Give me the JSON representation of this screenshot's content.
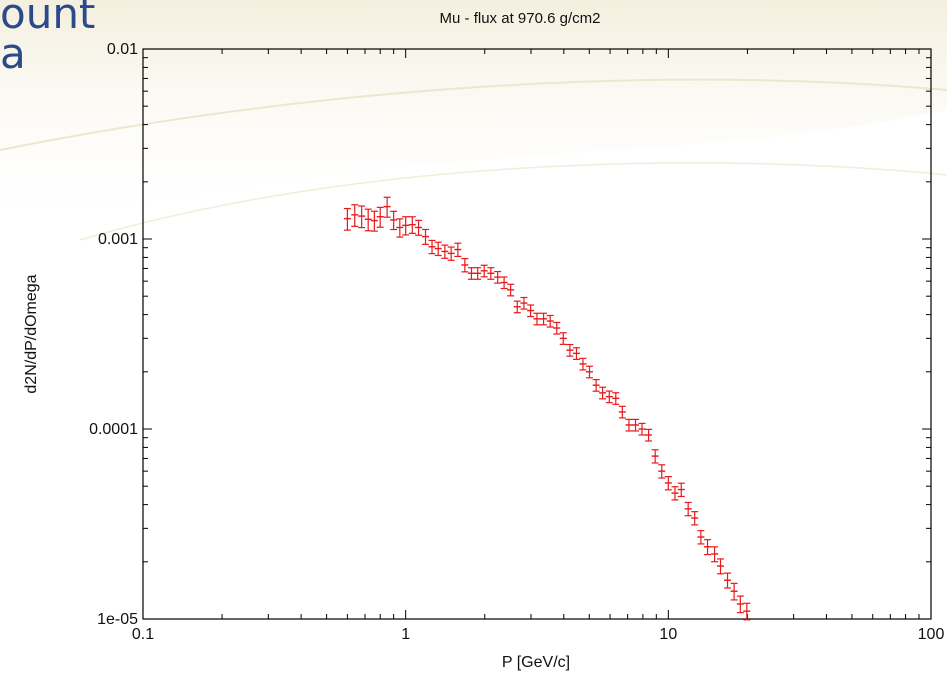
{
  "slide": {
    "text_lines": [
      "ount",
      "a"
    ],
    "text_color": "#2a4a8c"
  },
  "chart_data": {
    "type": "scatter",
    "title": "Mu - flux at 970.6 g/cm2",
    "xlabel": "P [GeV/c]",
    "ylabel": "d2N/dP/dOmega",
    "xscale": "log",
    "yscale": "log",
    "xlim": [
      0.1,
      100
    ],
    "ylim": [
      1e-05,
      0.01
    ],
    "x_ticks": [
      0.1,
      1,
      10,
      100
    ],
    "x_tick_labels": [
      "0.1",
      "1",
      "10",
      "100"
    ],
    "y_ticks": [
      1e-05,
      0.0001,
      0.001,
      0.01
    ],
    "y_tick_labels": [
      "1e-05",
      "0.0001",
      "0.001",
      "0.01"
    ],
    "grid": false,
    "legend": "none",
    "marker": "error-bar-crosses",
    "series_color": "#e8191b",
    "series": [
      {
        "x": [
          0.6,
          0.64,
          0.68,
          0.72,
          0.76,
          0.8,
          0.85,
          0.9,
          0.95,
          1.0,
          1.06,
          1.12,
          1.19,
          1.26,
          1.33,
          1.41,
          1.49,
          1.58,
          1.68,
          1.78,
          1.88,
          1.99,
          2.11,
          2.24,
          2.37,
          2.51,
          2.66,
          2.82,
          2.99,
          3.16,
          3.35,
          3.55,
          3.76,
          3.98,
          4.22,
          4.47,
          4.73,
          5.01,
          5.31,
          5.62,
          5.96,
          6.31,
          6.68,
          7.08,
          7.5,
          7.94,
          8.41,
          8.91,
          9.44,
          10.0,
          10.6,
          11.2,
          11.9,
          12.6,
          13.3,
          14.1,
          15.0,
          15.8,
          16.8,
          17.8,
          18.8,
          19.9
        ],
        "y": [
          0.00128,
          0.00134,
          0.00132,
          0.00127,
          0.00125,
          0.00131,
          0.00148,
          0.00126,
          0.00115,
          0.00118,
          0.00119,
          0.00115,
          0.00103,
          0.00091,
          0.00089,
          0.00086,
          0.00084,
          0.00088,
          0.00073,
          0.00066,
          0.00066,
          0.00068,
          0.00066,
          0.00063,
          0.00059,
          0.00054,
          0.00044,
          0.00046,
          0.00042,
          0.00038,
          0.00038,
          0.00037,
          0.00034,
          0.0003,
          0.00026,
          0.00025,
          0.00022,
          0.0002,
          0.00017,
          0.000155,
          0.000148,
          0.000145,
          0.000123,
          0.000105,
          0.000105,
          0.0001,
          9.3e-05,
          7.2e-05,
          6e-05,
          5.2e-05,
          4.6e-05,
          4.8e-05,
          3.8e-05,
          3.4e-05,
          2.7e-05,
          2.4e-05,
          2.2e-05,
          1.9e-05,
          1.6e-05,
          1.4e-05,
          1.2e-05,
          1.1e-05
        ],
        "yerr_frac": [
          0.13,
          0.13,
          0.13,
          0.13,
          0.12,
          0.12,
          0.12,
          0.11,
          0.11,
          0.11,
          0.1,
          0.09,
          0.09,
          0.08,
          0.08,
          0.08,
          0.08,
          0.08,
          0.08,
          0.07,
          0.07,
          0.07,
          0.07,
          0.07,
          0.07,
          0.07,
          0.07,
          0.07,
          0.07,
          0.07,
          0.07,
          0.07,
          0.07,
          0.07,
          0.07,
          0.07,
          0.07,
          0.07,
          0.07,
          0.07,
          0.07,
          0.07,
          0.07,
          0.07,
          0.07,
          0.07,
          0.07,
          0.08,
          0.08,
          0.08,
          0.08,
          0.08,
          0.08,
          0.08,
          0.08,
          0.09,
          0.09,
          0.09,
          0.09,
          0.1,
          0.1,
          0.1
        ]
      }
    ]
  }
}
